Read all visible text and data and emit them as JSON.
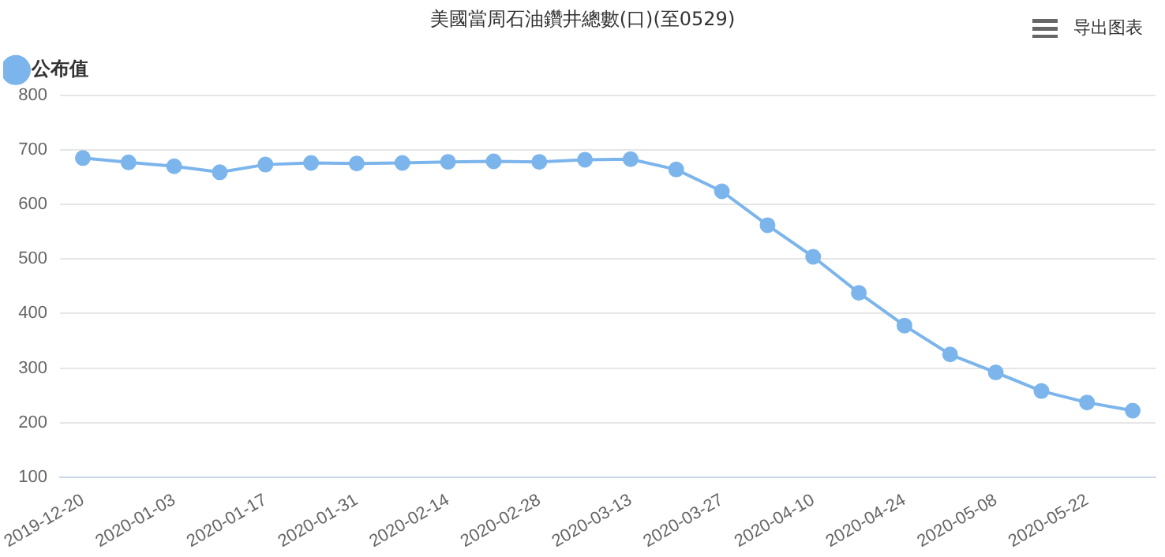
{
  "chart_data": {
    "type": "line",
    "title": "美國當周石油鑽井總數(口)(至0529)",
    "categories": [
      "2019-12-20",
      null,
      "2020-01-03",
      null,
      "2020-01-17",
      null,
      "2020-01-31",
      null,
      "2020-02-14",
      null,
      "2020-02-28",
      null,
      "2020-03-13",
      null,
      "2020-03-27",
      null,
      "2020-04-10",
      null,
      "2020-04-24",
      null,
      "2020-05-08",
      null,
      "2020-05-22",
      null
    ],
    "series": [
      {
        "name": "公布值",
        "color": "#7cb5ec",
        "values": [
          685,
          677,
          670,
          659,
          673,
          676,
          675,
          676,
          678,
          679,
          678,
          682,
          683,
          664,
          624,
          562,
          504,
          438,
          378,
          325,
          292,
          258,
          237,
          222
        ]
      }
    ],
    "ylim": [
      100,
      800
    ],
    "yticks": [
      100,
      200,
      300,
      400,
      500,
      600,
      700,
      800
    ],
    "grid": "y",
    "legend": "top left",
    "marker": "circle",
    "line_style": "solid",
    "annotations": [
      "导出图表"
    ]
  }
}
